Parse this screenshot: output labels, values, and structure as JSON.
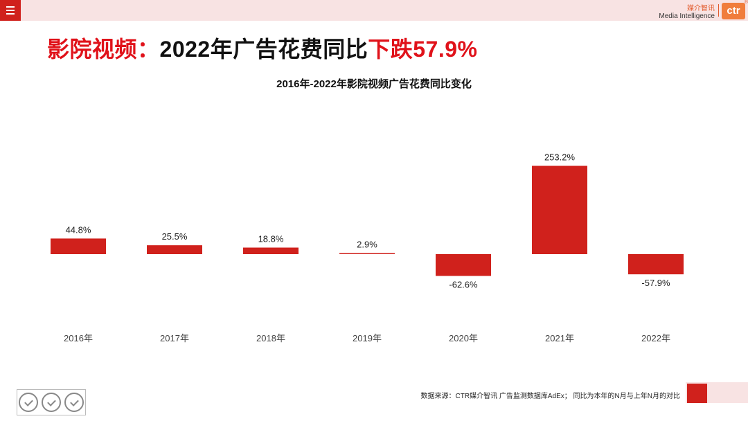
{
  "header": {
    "logo_cn": "媒介智讯",
    "logo_en": "Media Intelligence",
    "logo_mark": "ctr",
    "logo_tm": "®"
  },
  "headline": {
    "prefix": "影院视频：",
    "middle": "2022年广告花费同比",
    "suffix": "下跌57.9%"
  },
  "chart_data": {
    "type": "bar",
    "title": "2016年-2022年影院视频广告花费同比变化",
    "categories": [
      "2016年",
      "2017年",
      "2018年",
      "2019年",
      "2020年",
      "2021年",
      "2022年"
    ],
    "values": [
      44.8,
      25.5,
      18.8,
      2.9,
      -62.6,
      253.2,
      -57.9
    ],
    "value_labels": [
      "44.8%",
      "25.5%",
      "18.8%",
      "2.9%",
      "-62.6%",
      "253.2%",
      "-57.9%"
    ],
    "xlabel": "",
    "ylabel": "",
    "grid": false,
    "color": "#d0211c"
  },
  "footer": {
    "source": "数据来源：CTR媒介智讯 广告监测数据库AdEx；  同比为本年的N月与上年N月的对比"
  },
  "colors": {
    "accent": "#d0211c",
    "headline_red": "#e0121a",
    "band": "#f8e3e3"
  }
}
